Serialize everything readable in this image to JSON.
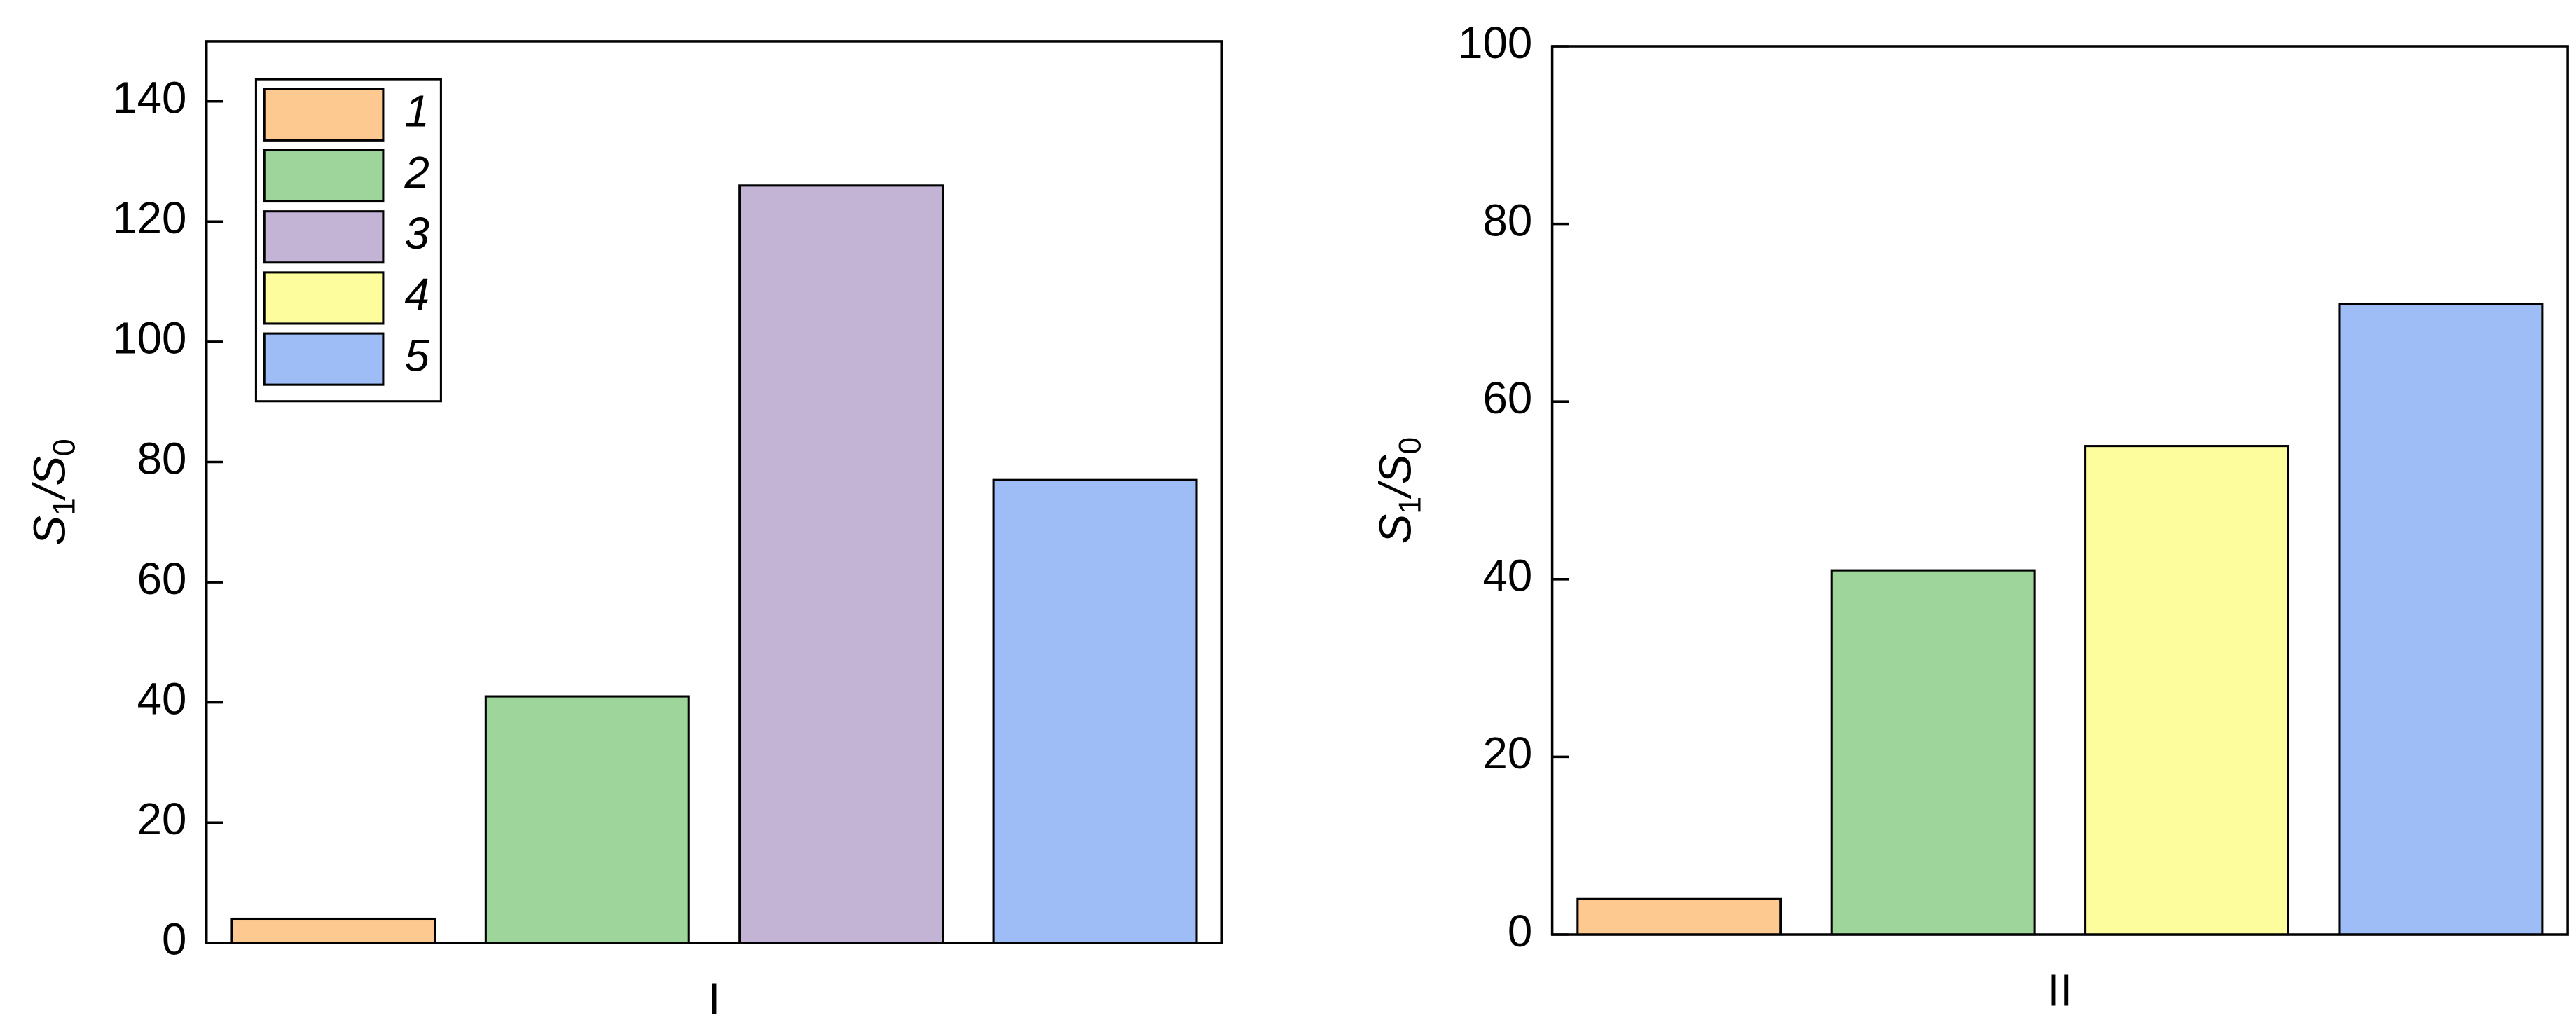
{
  "chart_data": [
    {
      "type": "bar",
      "y_label": [
        "S",
        "1",
        "/S",
        "0"
      ],
      "categories": [
        "I"
      ],
      "series": [
        {
          "name": "1",
          "color": "#fdc991",
          "values": [
            4
          ]
        },
        {
          "name": "2",
          "color": "#9dd59a",
          "values": [
            41
          ]
        },
        {
          "name": "3",
          "color": "#c3b4d6",
          "values": [
            126
          ]
        },
        {
          "name": "4",
          "color": "#fdfd9d",
          "values": [
            null
          ]
        },
        {
          "name": "5",
          "color": "#9ebcf5",
          "values": [
            77
          ]
        }
      ],
      "ylim": [
        0,
        150
      ],
      "yticks": [
        0,
        20,
        40,
        60,
        80,
        100,
        120,
        140
      ],
      "legend": "upper left"
    },
    {
      "type": "bar",
      "y_label": [
        "S",
        "1",
        "/S",
        "0"
      ],
      "categories": [
        "II"
      ],
      "series": [
        {
          "color": "#fdc991",
          "values": [
            4
          ]
        },
        {
          "color": "#9dd59a",
          "values": [
            41
          ]
        },
        {
          "color": "#fdfd9d",
          "values": [
            55
          ]
        },
        {
          "color": "#9ebcf5",
          "values": [
            71
          ]
        }
      ],
      "ylim": [
        0,
        100
      ],
      "yticks": [
        0,
        20,
        40,
        60,
        80,
        100
      ]
    }
  ]
}
